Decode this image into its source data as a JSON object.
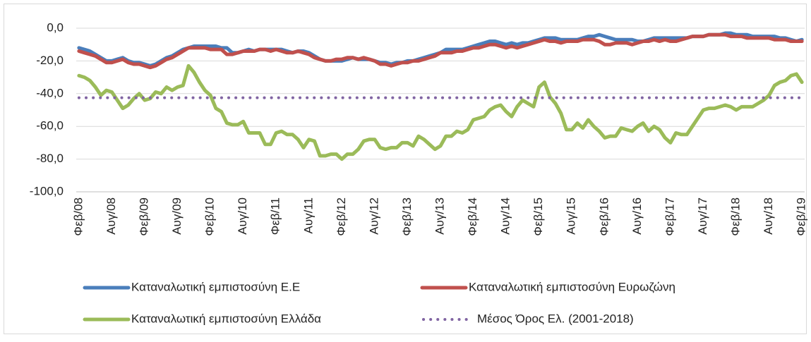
{
  "chart_data": {
    "type": "line",
    "categories": [
      "Φεβ/08",
      null,
      null,
      null,
      null,
      null,
      "Αυγ/08",
      null,
      null,
      null,
      null,
      null,
      "Φεβ/09",
      null,
      null,
      null,
      null,
      null,
      "Αυγ/09",
      null,
      null,
      null,
      null,
      null,
      "Φεβ/10",
      null,
      null,
      null,
      null,
      null,
      "Αυγ/10",
      null,
      null,
      null,
      null,
      null,
      "Φεβ/11",
      null,
      null,
      null,
      null,
      null,
      "Αυγ/11",
      null,
      null,
      null,
      null,
      null,
      "Φεβ/12",
      null,
      null,
      null,
      null,
      null,
      "Αυγ/12",
      null,
      null,
      null,
      null,
      null,
      "Φεβ/13",
      null,
      null,
      null,
      null,
      null,
      "Αυγ/13",
      null,
      null,
      null,
      null,
      null,
      "Φεβ/14",
      null,
      null,
      null,
      null,
      null,
      "Αυγ/14",
      null,
      null,
      null,
      null,
      null,
      "Φεβ/15",
      null,
      null,
      null,
      null,
      null,
      "Αυγ/15",
      null,
      null,
      null,
      null,
      null,
      "Φεβ/16",
      null,
      null,
      null,
      null,
      null,
      "Αυγ/16",
      null,
      null,
      null,
      null,
      null,
      "Φεβ/17",
      null,
      null,
      null,
      null,
      null,
      "Αυγ/17",
      null,
      null,
      null,
      null,
      null,
      "Φεβ/18",
      null,
      null,
      null,
      null,
      null,
      "Αυγ/18",
      null,
      null,
      null,
      null,
      null,
      "Φεβ/19"
    ],
    "series": [
      {
        "name": "Καταναλωτική εμπιστοσύνη Ε.Ε",
        "color": "#4a7ebb",
        "line_style": "solid",
        "values": [
          -12,
          -13,
          -14,
          -16,
          -18,
          -20,
          -20,
          -19,
          -18,
          -20,
          -21,
          -21,
          -22,
          -23,
          -22,
          -20,
          -18,
          -17,
          -15,
          -13,
          -12,
          -11,
          -11,
          -11,
          -11,
          -11,
          -12,
          -12,
          -15,
          -15,
          -14,
          -13,
          -14,
          -13,
          -13,
          -13,
          -13,
          -13,
          -14,
          -15,
          -14,
          -14,
          -15,
          -17,
          -19,
          -20,
          -20,
          -20,
          -20,
          -19,
          -18,
          -19,
          -19,
          -19,
          -20,
          -21,
          -21,
          -22,
          -21,
          -21,
          -20,
          -20,
          -19,
          -18,
          -17,
          -16,
          -15,
          -13,
          -13,
          -13,
          -13,
          -12,
          -11,
          -10,
          -9,
          -8,
          -8,
          -9,
          -10,
          -9,
          -10,
          -9,
          -9,
          -8,
          -7,
          -6,
          -6,
          -6,
          -7,
          -7,
          -7,
          -7,
          -6,
          -5,
          -5,
          -4,
          -5,
          -6,
          -7,
          -7,
          -7,
          -7,
          -8,
          -8,
          -7,
          -6,
          -6,
          -6,
          -6,
          -6,
          -6,
          -6,
          -5,
          -5,
          -5,
          -4,
          -4,
          -4,
          -3,
          -3,
          -4,
          -4,
          -4,
          -5,
          -5,
          -5,
          -5,
          -5,
          -6,
          -6,
          -7,
          -8,
          -7
        ]
      },
      {
        "name": "Καταναλωτική εμπιστοσύνη Ευρωζώνη",
        "color": "#c0504d",
        "line_style": "solid",
        "values": [
          -14,
          -15,
          -16,
          -17,
          -19,
          -21,
          -21,
          -20,
          -19,
          -21,
          -22,
          -22,
          -23,
          -24,
          -23,
          -21,
          -19,
          -18,
          -16,
          -14,
          -12,
          -12,
          -12,
          -12,
          -13,
          -13,
          -13,
          -16,
          -16,
          -15,
          -14,
          -14,
          -14,
          -13,
          -13,
          -14,
          -13,
          -14,
          -15,
          -15,
          -14,
          -15,
          -16,
          -18,
          -19,
          -20,
          -20,
          -19,
          -19,
          -18,
          -18,
          -19,
          -18,
          -19,
          -20,
          -22,
          -22,
          -23,
          -22,
          -21,
          -21,
          -20,
          -20,
          -19,
          -18,
          -17,
          -15,
          -15,
          -15,
          -14,
          -14,
          -13,
          -12,
          -12,
          -11,
          -10,
          -10,
          -11,
          -12,
          -11,
          -12,
          -11,
          -10,
          -9,
          -8,
          -7,
          -8,
          -8,
          -9,
          -8,
          -8,
          -8,
          -7,
          -7,
          -7,
          -8,
          -10,
          -10,
          -9,
          -9,
          -9,
          -10,
          -9,
          -8,
          -8,
          -7,
          -8,
          -7,
          -8,
          -8,
          -7,
          -6,
          -5,
          -5,
          -5,
          -4,
          -4,
          -4,
          -4,
          -5,
          -5,
          -5,
          -6,
          -6,
          -6,
          -6,
          -6,
          -7,
          -7,
          -7,
          -8,
          -8,
          -8
        ]
      },
      {
        "name": "Καταναλωτική εμπιστοσύνη Ελλάδα",
        "color": "#9bbb59",
        "line_style": "solid",
        "values": [
          -29,
          -30,
          -32,
          -36,
          -41,
          -38,
          -39,
          -44,
          -49,
          -47,
          -43,
          -40,
          -44,
          -43,
          -39,
          -40,
          -36,
          -38,
          -36,
          -35,
          -23,
          -27,
          -33,
          -38,
          -41,
          -49,
          -51,
          -58,
          -59,
          -59,
          -57,
          -64,
          -64,
          -64,
          -71,
          -71,
          -64,
          -63,
          -65,
          -65,
          -68,
          -73,
          -68,
          -69,
          -78,
          -78,
          -77,
          -77,
          -80,
          -77,
          -77,
          -74,
          -69,
          -68,
          -68,
          -73,
          -74,
          -73,
          -73,
          -70,
          -70,
          -72,
          -66,
          -68,
          -71,
          -74,
          -72,
          -66,
          -66,
          -63,
          -64,
          -62,
          -56,
          -55,
          -54,
          -50,
          -48,
          -47,
          -51,
          -54,
          -48,
          -44,
          -46,
          -48,
          -36,
          -33,
          -42,
          -46,
          -52,
          -62,
          -62,
          -58,
          -61,
          -56,
          -60,
          -63,
          -67,
          -66,
          -66,
          -61,
          -62,
          -63,
          -60,
          -58,
          -63,
          -60,
          -62,
          -67,
          -70,
          -64,
          -65,
          -65,
          -60,
          -55,
          -50,
          -49,
          -49,
          -48,
          -47,
          -48,
          -50,
          -48,
          -48,
          -48,
          -46,
          -44,
          -41,
          -35,
          -33,
          -32,
          -29,
          -28,
          -33
        ]
      },
      {
        "name": "Μέσος Όρος Ελ. (2001-2018)",
        "color": "#8064a2",
        "line_style": "dotted",
        "values": [
          -42.5,
          -42.5,
          -42.5,
          -42.5,
          -42.5,
          -42.5,
          -42.5,
          -42.5,
          -42.5,
          -42.5,
          -42.5,
          -42.5,
          -42.5,
          -42.5,
          -42.5,
          -42.5,
          -42.5,
          -42.5,
          -42.5,
          -42.5,
          -42.5,
          -42.5,
          -42.5,
          -42.5,
          -42.5,
          -42.5,
          -42.5,
          -42.5,
          -42.5,
          -42.5,
          -42.5,
          -42.5,
          -42.5,
          -42.5,
          -42.5,
          -42.5,
          -42.5,
          -42.5,
          -42.5,
          -42.5,
          -42.5,
          -42.5,
          -42.5,
          -42.5,
          -42.5,
          -42.5,
          -42.5,
          -42.5,
          -42.5,
          -42.5,
          -42.5,
          -42.5,
          -42.5,
          -42.5,
          -42.5,
          -42.5,
          -42.5,
          -42.5,
          -42.5,
          -42.5,
          -42.5,
          -42.5,
          -42.5,
          -42.5,
          -42.5,
          -42.5,
          -42.5,
          -42.5,
          -42.5,
          -42.5,
          -42.5,
          -42.5,
          -42.5,
          -42.5,
          -42.5,
          -42.5,
          -42.5,
          -42.5,
          -42.5,
          -42.5,
          -42.5,
          -42.5,
          -42.5,
          -42.5,
          -42.5,
          -42.5,
          -42.5,
          -42.5,
          -42.5,
          -42.5,
          -42.5,
          -42.5,
          -42.5,
          -42.5,
          -42.5,
          -42.5,
          -42.5,
          -42.5,
          -42.5,
          -42.5,
          -42.5,
          -42.5,
          -42.5,
          -42.5,
          -42.5,
          -42.5,
          -42.5,
          -42.5,
          -42.5,
          -42.5,
          -42.5,
          -42.5,
          -42.5,
          -42.5,
          -42.5,
          -42.5,
          -42.5,
          -42.5,
          -42.5,
          -42.5,
          -42.5,
          -42.5,
          -42.5,
          -42.5,
          -42.5,
          -42.5,
          -42.5,
          -42.5,
          -42.5,
          -42.5,
          -42.5,
          -42.5,
          -42.5
        ]
      }
    ],
    "ylim": [
      -100,
      0
    ],
    "yticks": [
      {
        "value": 0,
        "label": "0,0"
      },
      {
        "value": -20,
        "label": "-20,0"
      },
      {
        "value": -40,
        "label": "-40,0"
      },
      {
        "value": -60,
        "label": "-60,0"
      },
      {
        "value": -80,
        "label": "-80,0"
      },
      {
        "value": -100,
        "label": "-100,0"
      }
    ],
    "grid": true
  }
}
